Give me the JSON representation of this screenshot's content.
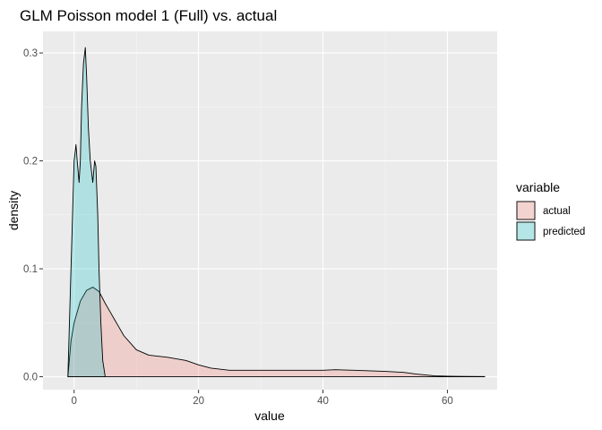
{
  "chart_data": {
    "type": "area",
    "title": "GLM Poisson model 1 (Full) vs. actual",
    "xlabel": "value",
    "ylabel": "density",
    "xlim": [
      -5,
      68
    ],
    "ylim": [
      -0.012,
      0.32
    ],
    "x_ticks": [
      0,
      20,
      40,
      60
    ],
    "x_tick_labels": [
      "0",
      "20",
      "40",
      "60"
    ],
    "y_ticks": [
      0.0,
      0.1,
      0.2,
      0.3
    ],
    "y_tick_labels": [
      "0.0",
      "0.1",
      "0.2",
      "0.3"
    ],
    "grid": true,
    "legend": {
      "title": "variable",
      "placement": "right"
    },
    "series": [
      {
        "name": "actual",
        "fill": "#f8766d",
        "x": [
          -1,
          -0.5,
          0,
          1,
          2,
          3,
          4,
          5,
          6,
          7,
          8,
          10,
          12,
          15,
          18,
          20,
          22,
          25,
          30,
          35,
          40,
          42,
          45,
          50,
          53,
          55,
          58,
          60,
          63,
          66
        ],
        "y": [
          0,
          0.033,
          0.05,
          0.07,
          0.08,
          0.083,
          0.079,
          0.068,
          0.058,
          0.048,
          0.038,
          0.025,
          0.02,
          0.018,
          0.015,
          0.011,
          0.008,
          0.006,
          0.006,
          0.006,
          0.006,
          0.0065,
          0.006,
          0.005,
          0.004,
          0.0025,
          0.0008,
          0.0005,
          0.0003,
          0.0002
        ]
      },
      {
        "name": "predicted",
        "fill": "#00bfc4",
        "x": [
          -1,
          -0.5,
          0,
          0.3,
          0.5,
          0.8,
          1,
          1.2,
          1.5,
          1.8,
          2,
          2.3,
          2.6,
          3,
          3.3,
          3.5,
          3.8,
          4,
          4.3,
          4.6,
          5
        ],
        "y": [
          0,
          0.1,
          0.2,
          0.215,
          0.2,
          0.18,
          0.2,
          0.25,
          0.29,
          0.305,
          0.28,
          0.23,
          0.2,
          0.18,
          0.2,
          0.195,
          0.15,
          0.1,
          0.05,
          0.015,
          0
        ]
      }
    ]
  }
}
